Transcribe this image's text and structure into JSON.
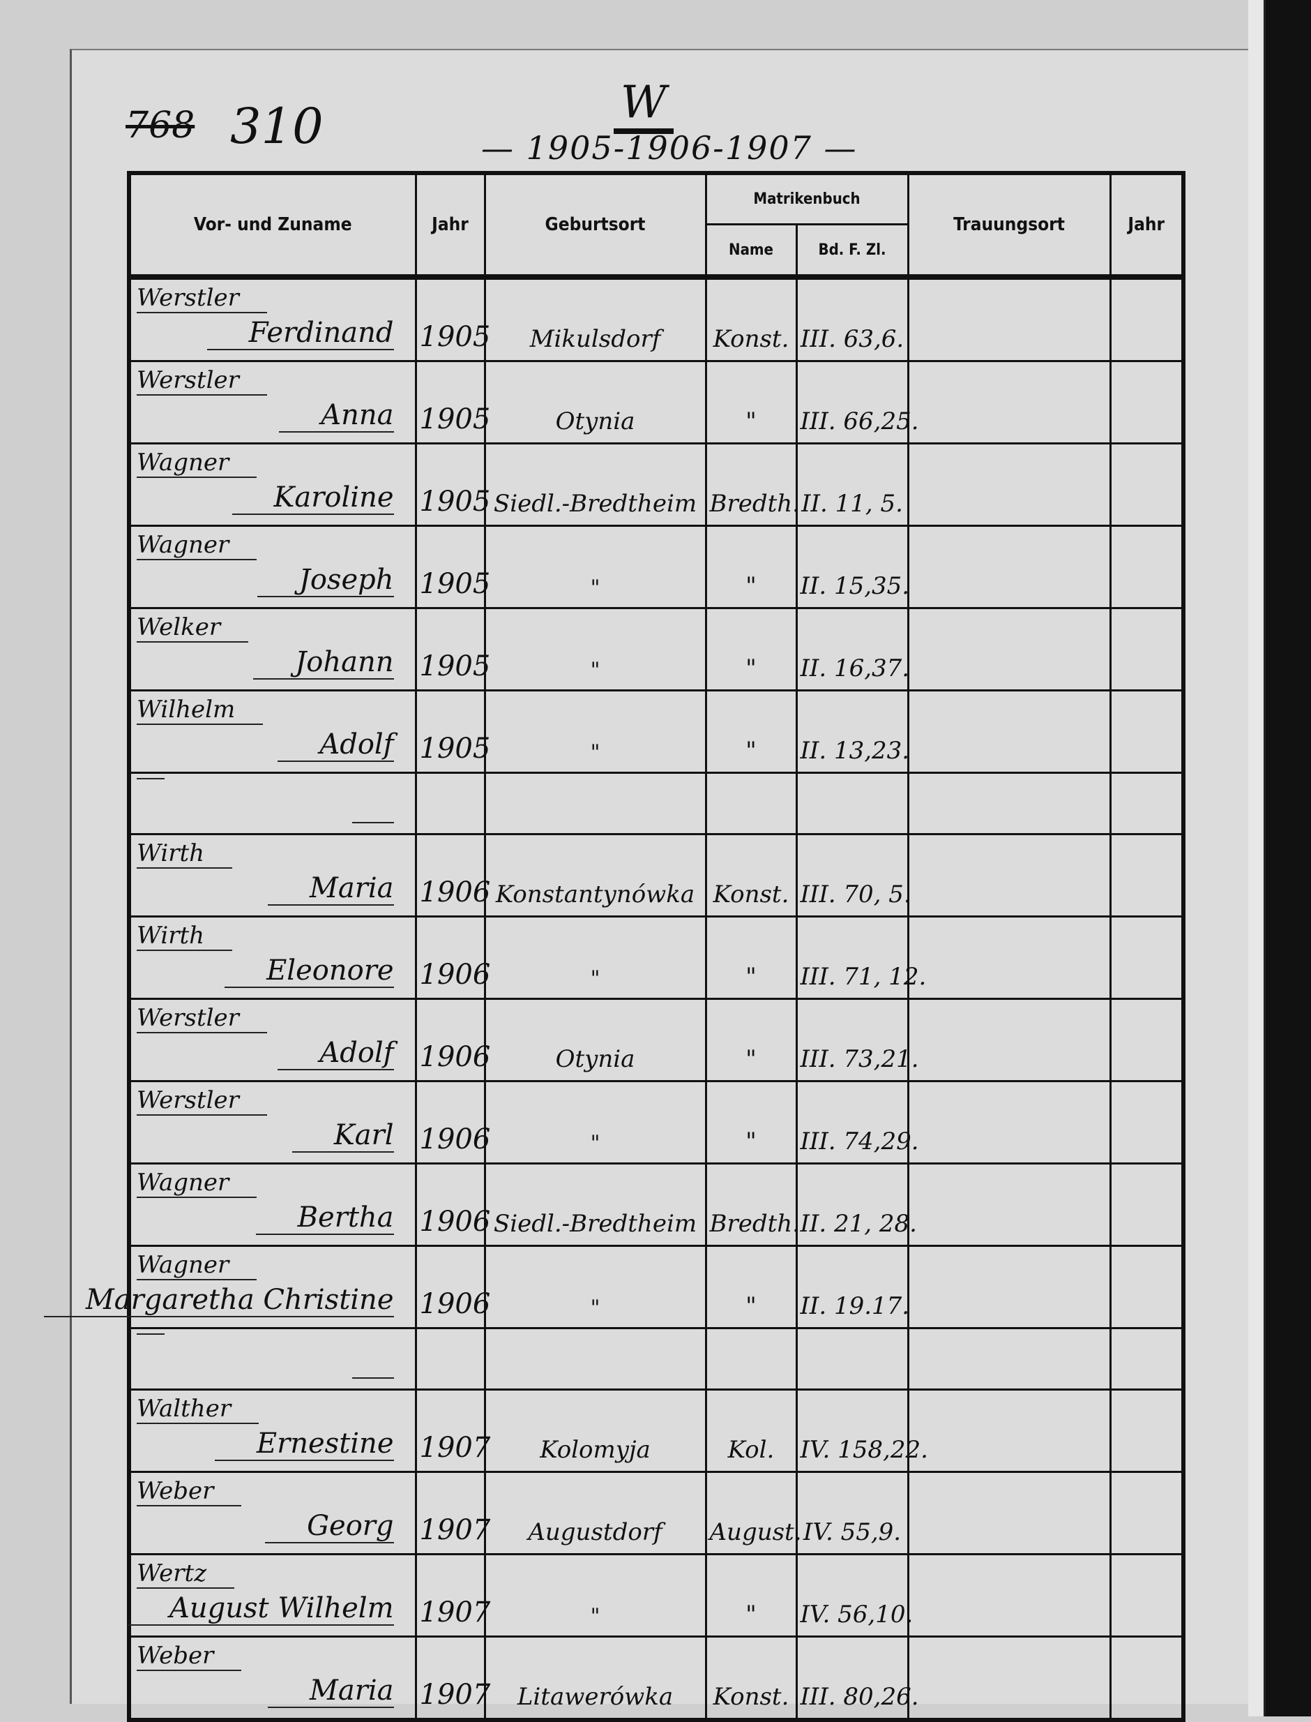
{
  "header": {
    "old_page_number": "768",
    "page_number": "310",
    "letter": "W",
    "years": "— 1905-1906-1907 —"
  },
  "table": {
    "columns": {
      "name": "Vor- und Zuname",
      "year": "Jahr",
      "birthplace": "Geburtsort",
      "register": "Matrikenbuch",
      "register_name": "Name",
      "register_ref": "Bd. F. Zl.",
      "marriage_place": "Trauungsort",
      "marriage_year": "Jahr"
    },
    "rows": [
      {
        "surname": "Werstler",
        "given": "Ferdinand",
        "year": "1905",
        "birthplace": "Mikulsdorf",
        "reg_name": "Konst.",
        "reg_ref": "III. 63,6."
      },
      {
        "surname": "Werstler",
        "given": "Anna",
        "year": "1905",
        "birthplace": "Otynia",
        "reg_name": "\"",
        "reg_ref": "III. 66,25."
      },
      {
        "surname": "Wagner",
        "given": "Karoline",
        "year": "1905",
        "birthplace": "Siedl.-Bredtheim",
        "reg_name": "Bredth.",
        "reg_ref": "II. 11, 5."
      },
      {
        "surname": "Wagner",
        "given": "Joseph",
        "year": "1905",
        "birthplace": "\"",
        "reg_name": "\"",
        "reg_ref": "II. 15,35."
      },
      {
        "surname": "Welker",
        "given": "Johann",
        "year": "1905",
        "birthplace": "\"",
        "reg_name": "\"",
        "reg_ref": "II. 16,37."
      },
      {
        "surname": "Wilhelm",
        "given": "Adolf",
        "year": "1905",
        "birthplace": "\"",
        "reg_name": "\"",
        "reg_ref": "II. 13,23."
      },
      {
        "surname": "",
        "given": "",
        "year": "",
        "birthplace": "",
        "reg_name": "",
        "reg_ref": ""
      },
      {
        "surname": "Wirth",
        "given": "Maria",
        "year": "1906",
        "birthplace": "Konstantynówka",
        "reg_name": "Konst.",
        "reg_ref": "III. 70, 5."
      },
      {
        "surname": "Wirth",
        "given": "Eleonore",
        "year": "1906",
        "birthplace": "\"",
        "reg_name": "\"",
        "reg_ref": "III. 71, 12."
      },
      {
        "surname": "Werstler",
        "given": "Adolf",
        "year": "1906",
        "birthplace": "Otynia",
        "reg_name": "\"",
        "reg_ref": "III. 73,21."
      },
      {
        "surname": "Werstler",
        "given": "Karl",
        "year": "1906",
        "birthplace": "\"",
        "reg_name": "\"",
        "reg_ref": "III. 74,29."
      },
      {
        "surname": "Wagner",
        "given": "Bertha",
        "year": "1906",
        "birthplace": "Siedl.-Bredtheim",
        "reg_name": "Bredth.",
        "reg_ref": "II. 21, 28."
      },
      {
        "surname": "Wagner",
        "given": "Margaretha Christine",
        "year": "1906",
        "birthplace": "\"",
        "reg_name": "\"",
        "reg_ref": "II. 19.17."
      },
      {
        "surname": "",
        "given": "",
        "year": "",
        "birthplace": "",
        "reg_name": "",
        "reg_ref": ""
      },
      {
        "surname": "Walther",
        "given": "Ernestine",
        "year": "1907",
        "birthplace": "Kolomyja",
        "reg_name": "Kol.",
        "reg_ref": "IV. 158,22."
      },
      {
        "surname": "Weber",
        "given": "Georg",
        "year": "1907",
        "birthplace": "Augustdorf",
        "reg_name": "August.",
        "reg_ref": "IV. 55,9."
      },
      {
        "surname": "Wertz",
        "given": "August Wilhelm",
        "year": "1907",
        "birthplace": "\"",
        "reg_name": "\"",
        "reg_ref": "IV. 56,10."
      },
      {
        "surname": "Weber",
        "given": "Maria",
        "year": "1907",
        "birthplace": "Litawerówka",
        "reg_name": "Konst.",
        "reg_ref": "III. 80,26."
      }
    ]
  }
}
